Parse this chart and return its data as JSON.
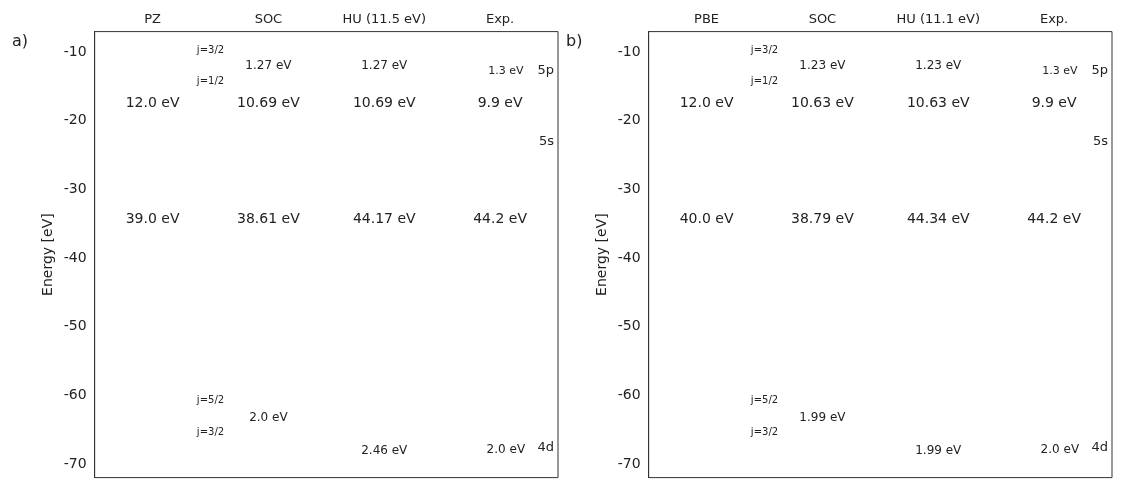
{
  "chart_data": [
    {
      "type": "scatter",
      "title": "a)",
      "ylabel": "Energy [eV]",
      "categories": [
        "PZ",
        "SOC",
        "HU (11.5 eV)",
        "Exp."
      ],
      "ylim": [
        -72,
        -7
      ],
      "yticks": [
        -10,
        -20,
        -30,
        -40,
        -50,
        -60,
        -70
      ],
      "annotations": [
        "j=3/2",
        "1.27 eV",
        "1.27 eV",
        "1.3 eV",
        "5p",
        "j=1/2",
        "12.0 eV",
        "10.69 eV",
        "10.69 eV",
        "9.9 eV",
        "5s",
        "39.0 eV",
        "38.61 eV",
        "44.17 eV",
        "44.2 eV",
        "j=5/2",
        "2.0 eV",
        "j=3/2",
        "2.46 eV",
        "2.0 eV",
        "4d"
      ]
    },
    {
      "type": "scatter",
      "title": "b)",
      "ylabel": "Energy [eV]",
      "categories": [
        "PBE",
        "SOC",
        "HU (11.1 eV)",
        "Exp."
      ],
      "ylim": [
        -72,
        -7
      ],
      "yticks": [
        -10,
        -20,
        -30,
        -40,
        -50,
        -60,
        -70
      ],
      "annotations": [
        "j=3/2",
        "1.23 eV",
        "1.23 eV",
        "1.3 eV",
        "5p",
        "j=1/2",
        "12.0 eV",
        "10.63 eV",
        "10.63 eV",
        "9.9 eV",
        "5s",
        "40.0 eV",
        "38.79 eV",
        "44.34 eV",
        "44.2 eV",
        "j=5/2",
        "1.99 eV",
        "j=3/2",
        "1.99 eV",
        "2.0 eV",
        "4d"
      ]
    }
  ]
}
